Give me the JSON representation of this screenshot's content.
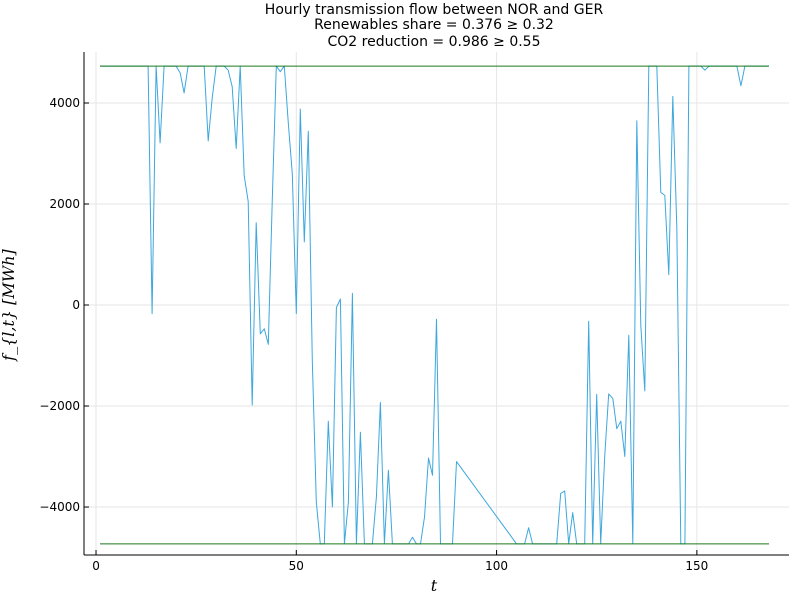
{
  "chart_data": {
    "type": "line",
    "title_lines": [
      "Hourly transmission flow between NOR and GER",
      "Renewables share = 0.376 ≥ 0.32",
      "CO2 reduction = 0.986 ≥ 0.55"
    ],
    "xlabel": "t",
    "ylabel": "f_{l,t} [MWh]",
    "xlim": [
      -3,
      173
    ],
    "ylim": [
      -4950,
      5010
    ],
    "xticks": [
      0,
      50,
      100,
      150
    ],
    "yticks": [
      -4000,
      -2000,
      0,
      2000,
      4000
    ],
    "ytick_labels": [
      "−4000",
      "−2000",
      "0",
      "2000",
      "4000"
    ],
    "grid": true,
    "legend": "none",
    "colors": {
      "flow": "#3da7de",
      "limits": "#1a7a1a"
    },
    "series": [
      {
        "values_x": [
          1,
          13,
          14,
          15,
          16,
          17,
          20,
          21,
          22,
          23,
          24,
          27,
          28,
          29,
          30,
          31,
          32,
          33,
          34,
          35,
          36,
          37,
          38,
          39,
          40,
          41,
          42,
          43,
          44,
          45,
          46,
          47,
          48,
          49,
          50,
          51,
          52,
          53,
          54,
          55,
          56,
          57,
          58,
          59,
          60,
          61,
          62,
          63,
          64,
          65,
          66,
          67,
          68,
          69,
          70,
          71,
          72,
          73,
          74,
          75,
          76,
          77,
          78,
          79,
          80,
          81,
          82,
          83,
          84,
          85,
          86,
          87,
          88,
          89,
          90,
          105,
          106,
          107,
          108,
          109,
          115,
          116,
          117,
          118,
          119,
          120,
          121,
          122,
          123,
          124,
          125,
          126,
          127,
          128,
          129,
          130,
          131,
          132,
          133,
          134,
          135,
          136,
          137,
          138,
          139,
          140,
          141,
          142,
          143,
          144,
          145,
          146,
          147,
          148,
          151,
          152,
          153,
          155,
          160,
          161,
          162,
          168
        ],
        "values_y": [
          4730,
          4730,
          -170,
          4730,
          3210,
          4730,
          4730,
          4600,
          4200,
          4730,
          4730,
          4730,
          3250,
          4100,
          4730,
          4730,
          4730,
          4650,
          4320,
          3100,
          4730,
          2560,
          2050,
          -1980,
          1630,
          -570,
          -470,
          -780,
          2100,
          4730,
          4620,
          4730,
          3600,
          2600,
          -170,
          3880,
          1250,
          3440,
          -1100,
          -3900,
          -4730,
          -4730,
          -2300,
          -4000,
          -50,
          120,
          -4730,
          -3900,
          230,
          -4730,
          -2520,
          -4730,
          -4730,
          -4730,
          -3800,
          -1930,
          -4730,
          -3270,
          -4730,
          -4730,
          -4730,
          -4730,
          -4730,
          -4600,
          -4730,
          -4730,
          -4200,
          -3030,
          -3370,
          -280,
          -4730,
          -4730,
          -4730,
          -4730,
          -3100,
          -4730,
          -4730,
          -4730,
          -4410,
          -4730,
          -4730,
          -3730,
          -3680,
          -4730,
          -4110,
          -4730,
          -4730,
          -4730,
          -320,
          -4730,
          -1770,
          -4730,
          -3000,
          -1760,
          -1850,
          -2450,
          -2300,
          -3000,
          -600,
          -4730,
          3650,
          -400,
          -1700,
          4730,
          4730,
          4730,
          2230,
          2170,
          600,
          4130,
          1550,
          -4730,
          -4730,
          4730,
          4730,
          4650,
          4730,
          4730,
          4730,
          4340,
          4730,
          4730
        ]
      },
      {
        "values_x": [
          1,
          168
        ],
        "values_y": [
          4730,
          4730
        ]
      },
      {
        "values_x": [
          1,
          168
        ],
        "values_y": [
          -4730,
          -4730
        ]
      }
    ]
  }
}
